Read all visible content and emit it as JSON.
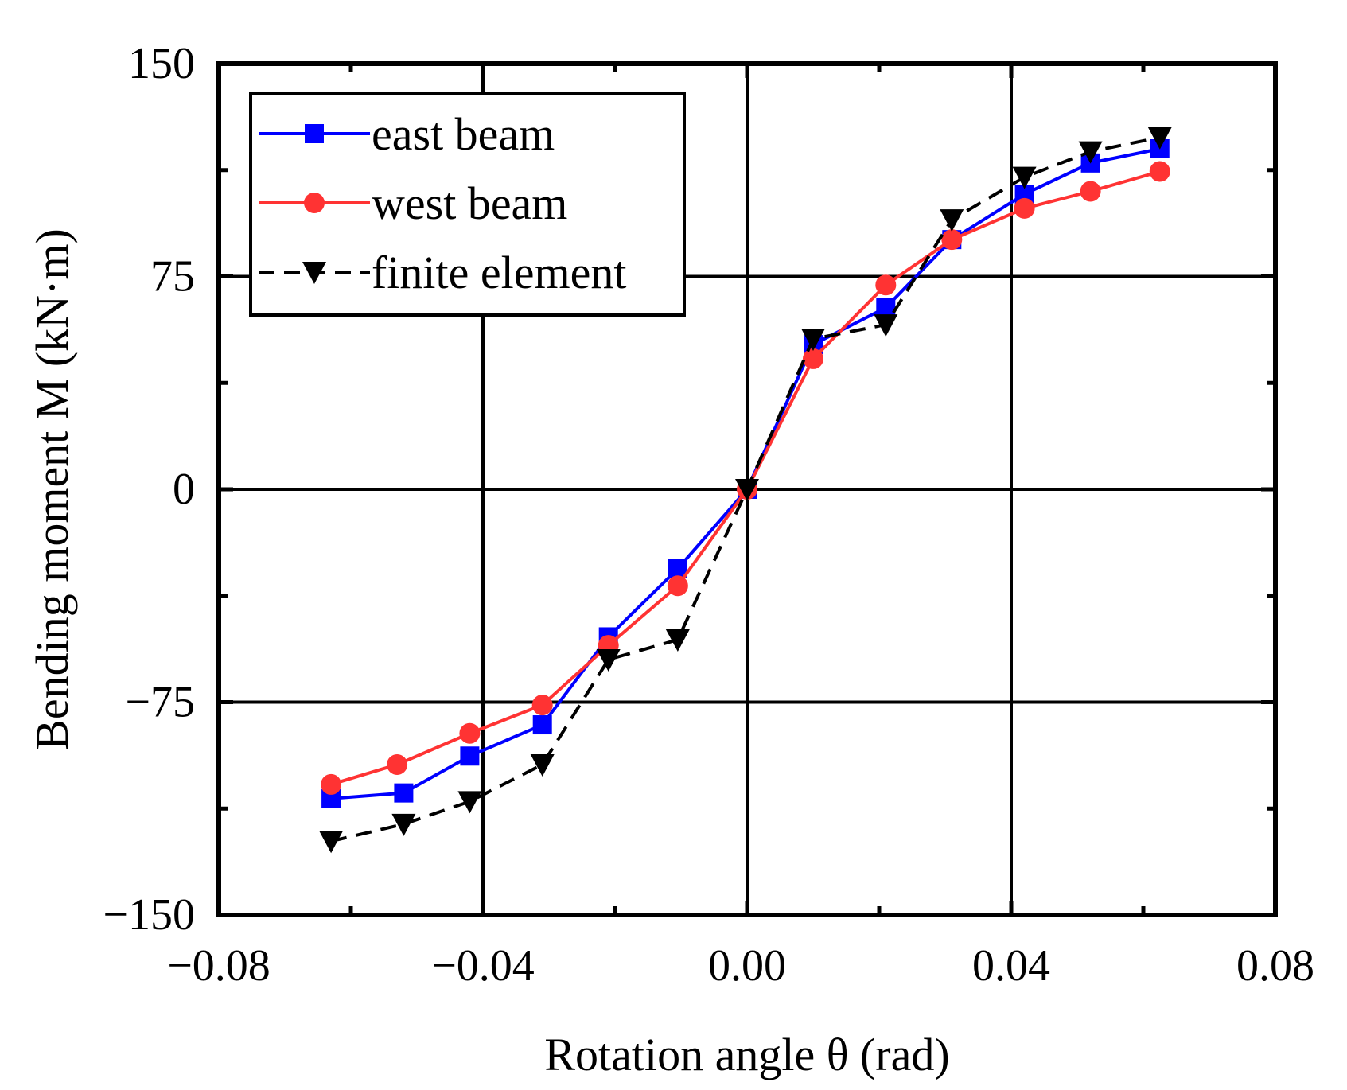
{
  "chart_data": {
    "type": "line",
    "title": "",
    "xlabel": "Rotation angle θ (rad)",
    "ylabel": "Bending moment M (kN·m)",
    "xlim": [
      -0.08,
      0.08
    ],
    "ylim": [
      -150,
      150
    ],
    "xticks": [
      -0.08,
      -0.04,
      0.0,
      0.04,
      0.08
    ],
    "xtick_labels": [
      "−0.08",
      "−0.04",
      "0.00",
      "0.04",
      "0.08"
    ],
    "yticks": [
      -150,
      -75,
      0,
      75,
      150
    ],
    "ytick_labels": [
      "−150",
      "−75",
      "0",
      "75",
      "150"
    ],
    "grid": true,
    "legend_position": "top-left",
    "series": [
      {
        "name": "east beam",
        "color": "#0000ff",
        "marker": "square",
        "line_style": "solid",
        "x": [
          -0.063,
          -0.052,
          -0.042,
          -0.031,
          -0.021,
          -0.0105,
          0.0,
          0.01,
          0.021,
          0.031,
          0.042,
          0.052,
          0.0625
        ],
        "y": [
          -109,
          -107,
          -94,
          -83,
          -52,
          -28,
          0,
          51,
          64,
          88,
          104,
          115,
          120
        ]
      },
      {
        "name": "west beam",
        "color": "#ff3333",
        "marker": "circle",
        "line_style": "solid",
        "x": [
          -0.063,
          -0.053,
          -0.042,
          -0.031,
          -0.021,
          -0.0105,
          0.0,
          0.01,
          0.021,
          0.031,
          0.042,
          0.052,
          0.0625
        ],
        "y": [
          -104,
          -97,
          -86,
          -76,
          -55,
          -34,
          0,
          46,
          72,
          88,
          99,
          105,
          112
        ]
      },
      {
        "name": "finite element",
        "color": "#000000",
        "marker": "triangle-down",
        "line_style": "dashed",
        "x": [
          -0.063,
          -0.052,
          -0.042,
          -0.031,
          -0.021,
          -0.0105,
          0.0,
          0.01,
          0.021,
          0.031,
          0.042,
          0.052,
          0.0625
        ],
        "y": [
          -124,
          -118,
          -110,
          -97,
          -60,
          -53,
          0,
          53,
          58,
          95,
          110,
          119,
          124
        ]
      }
    ]
  }
}
